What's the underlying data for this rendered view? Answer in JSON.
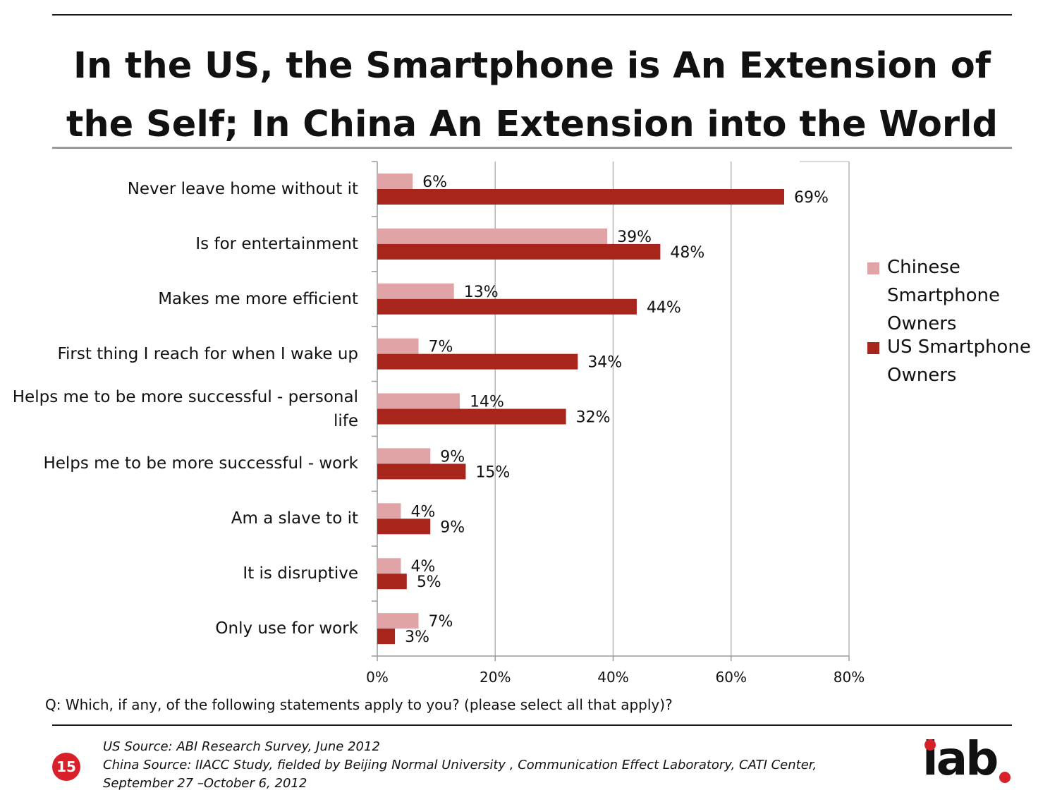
{
  "title": "In the US, the Smartphone is An Extension of the Self; In China An Extension into the World",
  "question": "Q:  Which, if any, of the following statements apply to you? (please select all that apply)?",
  "sources": [
    "US Source: ABI Research Survey, June 2012",
    "China Source:  IIACC Study, fielded by Beijing Normal University , Communication Effect Laboratory, CATI Center,",
    "September 27 –October 6, 2012"
  ],
  "page_number": "15",
  "logo": {
    "text": "iab",
    "icon": "iab-logo",
    "dot_color": "#d8202a"
  },
  "colors": {
    "chinese": "#e0a3a6",
    "us": "#a8251c",
    "gridline": "#b5b5b5",
    "axis": "#9a9a9a"
  },
  "chart_data": {
    "type": "bar",
    "orientation": "horizontal",
    "categories": [
      "Never leave home without it",
      "Is for entertainment",
      "Makes me more efficient",
      "First thing I reach for when I wake up",
      "Helps me to be more successful - personal life",
      "Helps me to be more successful - work",
      "Am a slave to it",
      "It is disruptive",
      "Only use for work"
    ],
    "series": [
      {
        "name": "Chinese Smartphone Owners",
        "values": [
          6,
          39,
          13,
          7,
          14,
          9,
          4,
          4,
          7
        ],
        "labels": [
          "6%",
          "39%",
          "13%",
          "7%",
          "14%",
          "9%",
          "4%",
          "4%",
          "7%"
        ]
      },
      {
        "name": "US Smartphone Owners",
        "values": [
          69,
          48,
          44,
          34,
          32,
          15,
          9,
          5,
          3
        ],
        "labels": [
          "69%",
          "48%",
          "44%",
          "34%",
          "32%",
          "15%",
          "9%",
          "5%",
          "3%"
        ]
      }
    ],
    "xlim": [
      0,
      80
    ],
    "xticks": [
      0,
      20,
      40,
      60,
      80
    ],
    "xtick_labels": [
      "0%",
      "20%",
      "40%",
      "60%",
      "80%"
    ],
    "grid": true,
    "legend_position": "right"
  }
}
